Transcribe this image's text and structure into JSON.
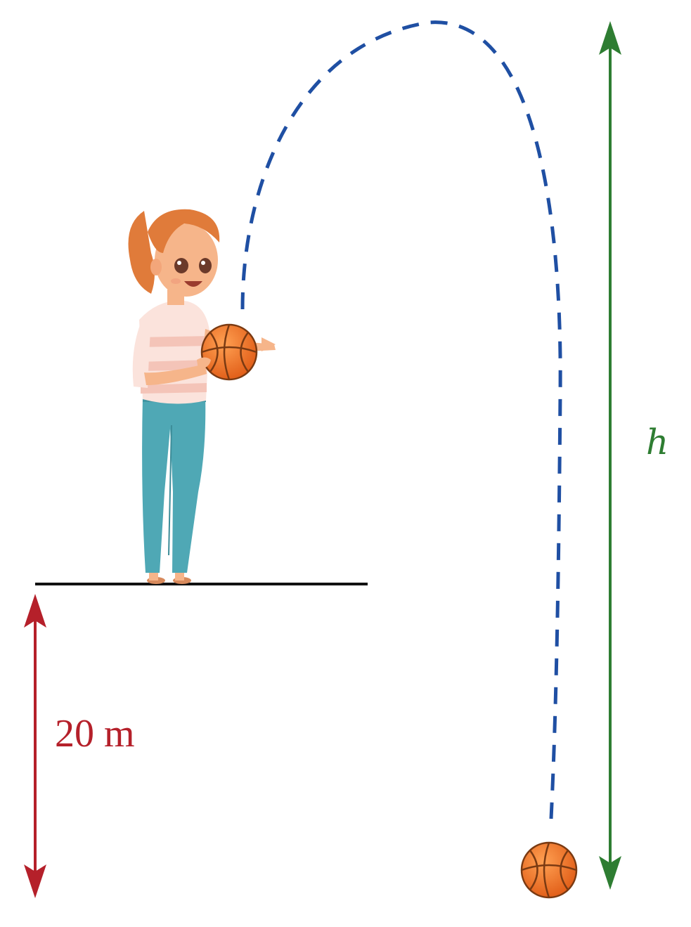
{
  "labels": {
    "height_total": "h",
    "cliff_height": "20 m"
  },
  "colors": {
    "trajectory": "#1f4fa3",
    "height_arrow": "#2e7d32",
    "cliff_arrow": "#b5202a",
    "ground": "#111111",
    "ball": "#f47a20",
    "ball_seam": "#7a3a12",
    "hair": "#e07b3a",
    "skin": "#f6b58a",
    "shirt": "#fbe3dc",
    "shirt_stripe": "#f4c4b8",
    "jeans": "#4fa8b5"
  },
  "icons": [
    "girl-figure",
    "basketball-icon"
  ]
}
